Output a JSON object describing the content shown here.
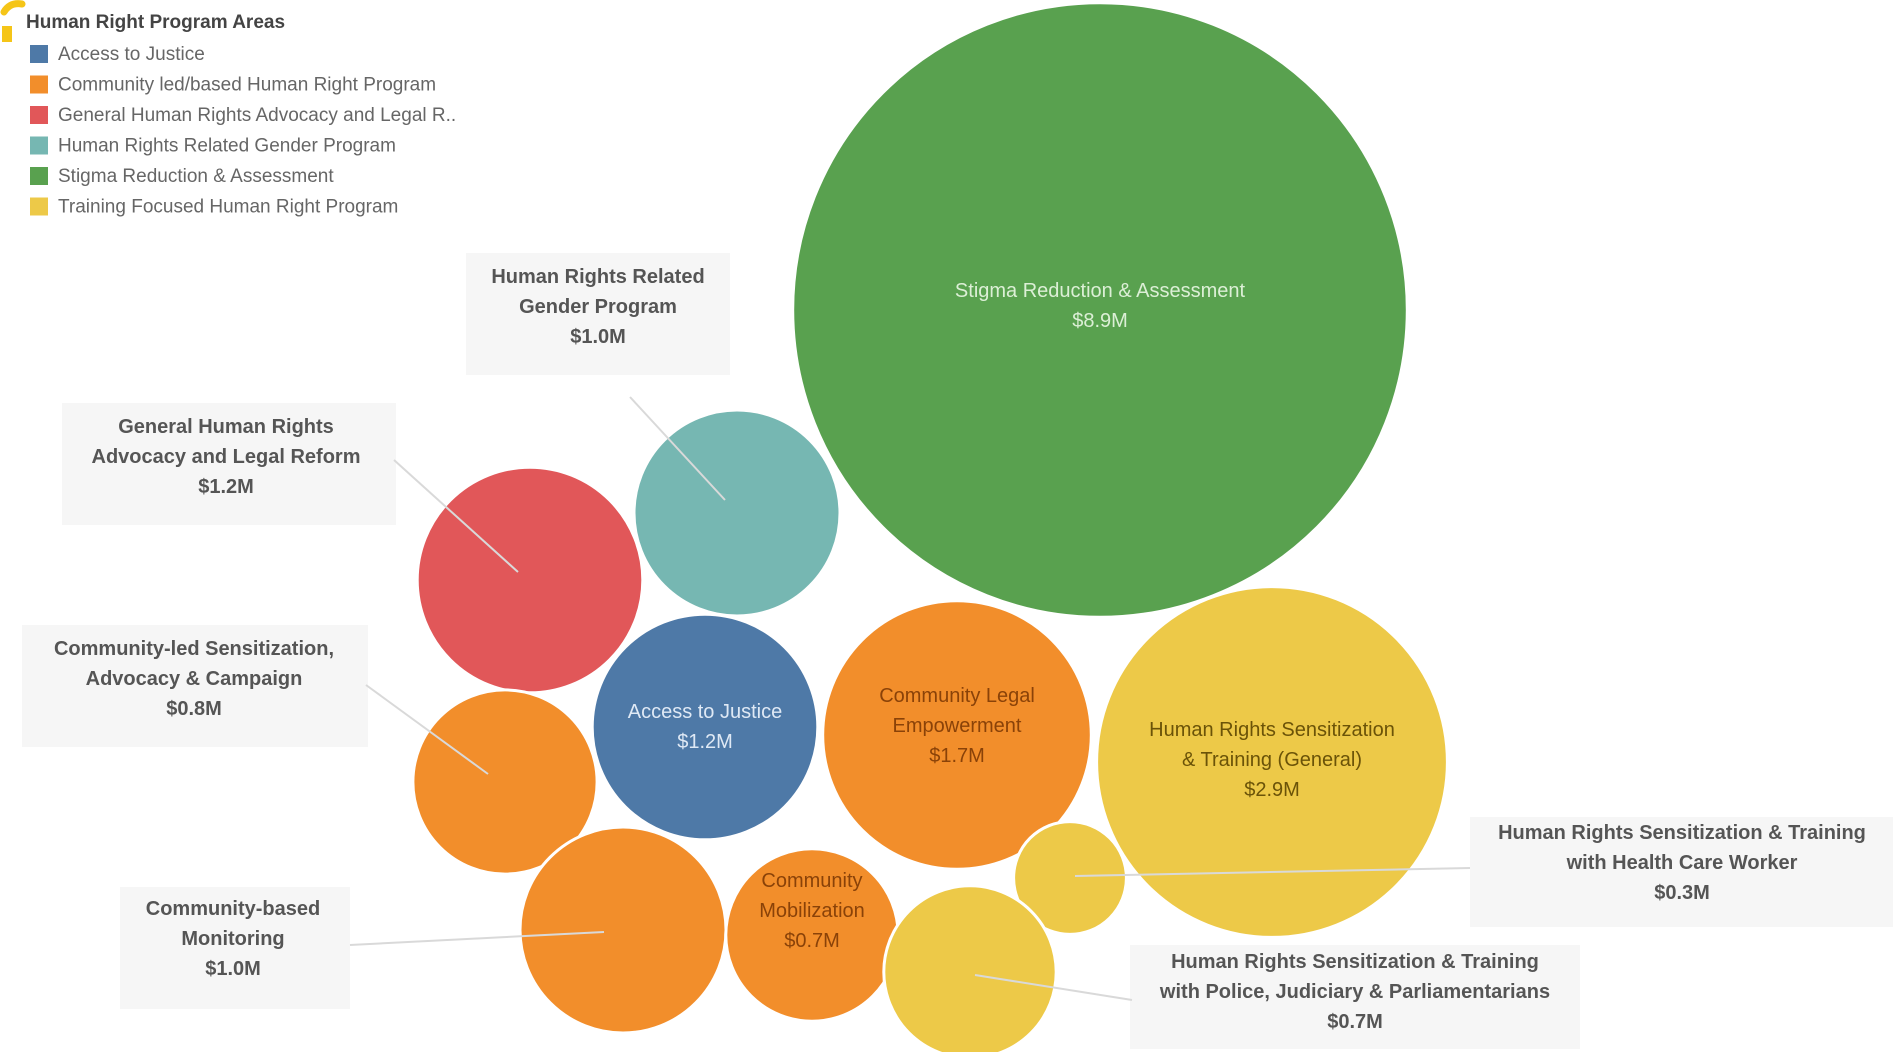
{
  "chart_data": {
    "type": "bubble",
    "legend": {
      "title": "Human Right Program Areas",
      "placement": "top-left",
      "items": [
        {
          "label": "Access to Justice",
          "color": "#4e79a7"
        },
        {
          "label": "Community led/based Human Right Program",
          "color": "#f28e2b"
        },
        {
          "label": "General Human Rights Advocacy and Legal R..",
          "color": "#e15759"
        },
        {
          "label": "Human Rights Related Gender Program",
          "color": "#76b7b2"
        },
        {
          "label": "Stigma Reduction & Assessment",
          "color": "#59a14f"
        },
        {
          "label": "Training Focused Human Right Program",
          "color": "#edc948"
        }
      ]
    },
    "bubbles": [
      {
        "lines": [
          "Stigma Reduction & Assessment"
        ],
        "value_label": "$8.9M",
        "value": 8.9,
        "area": "Stigma Reduction & Assessment",
        "label_inside": true
      },
      {
        "lines": [
          "Human Rights Related",
          "Gender Program"
        ],
        "value_label": "$1.0M",
        "value": 1.0,
        "area": "Human Rights Related Gender Program",
        "label_inside": false
      },
      {
        "lines": [
          "General Human Rights",
          "Advocacy and Legal Reform"
        ],
        "value_label": "$1.2M",
        "value": 1.2,
        "area": "General Human Rights Advocacy and Legal R..",
        "label_inside": false
      },
      {
        "lines": [
          "Access to Justice"
        ],
        "value_label": "$1.2M",
        "value": 1.2,
        "area": "Access to Justice",
        "label_inside": true
      },
      {
        "lines": [
          "Community-led Sensitization,",
          "Advocacy & Campaign"
        ],
        "value_label": "$0.8M",
        "value": 0.8,
        "area": "Community led/based Human Right Program",
        "label_inside": false
      },
      {
        "lines": [
          "Community Legal",
          "Empowerment"
        ],
        "value_label": "$1.7M",
        "value": 1.7,
        "area": "Community led/based Human Right Program",
        "label_inside": true
      },
      {
        "lines": [
          "Human Rights Sensitization",
          "& Training (General)"
        ],
        "value_label": "$2.9M",
        "value": 2.9,
        "area": "Training Focused Human Right Program",
        "label_inside": true
      },
      {
        "lines": [
          "Community-based",
          "Monitoring"
        ],
        "value_label": "$1.0M",
        "value": 1.0,
        "area": "Community led/based Human Right Program",
        "label_inside": false
      },
      {
        "lines": [
          "Community",
          "Mobilization"
        ],
        "value_label": "$0.7M",
        "value": 0.7,
        "area": "Community led/based Human Right Program",
        "label_inside": true
      },
      {
        "lines": [
          "Human Rights Sensitization & Training",
          "with Health Care Worker"
        ],
        "value_label": "$0.3M",
        "value": 0.3,
        "area": "Training Focused Human Right Program",
        "label_inside": false
      },
      {
        "lines": [
          "Human Rights Sensitization & Training",
          "with Police, Judiciary & Parliamentarians"
        ],
        "value_label": "$0.7M",
        "value": 0.7,
        "area": "Training Focused Human Right Program",
        "label_inside": false
      }
    ]
  }
}
